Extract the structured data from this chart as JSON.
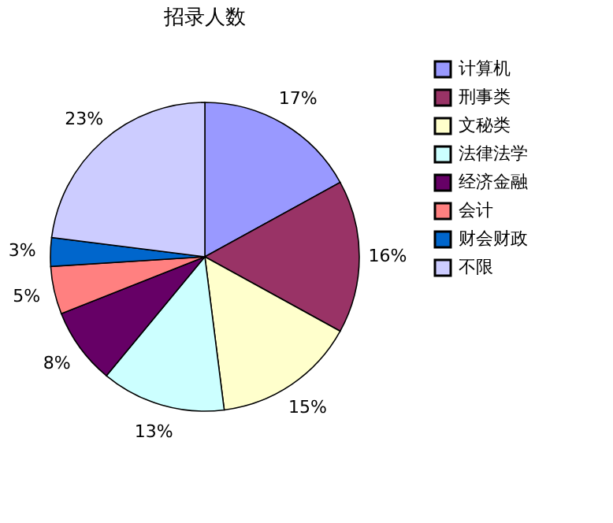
{
  "chart_data": {
    "type": "pie",
    "title": "招录人数",
    "categories": [
      "计算机",
      "刑事类",
      "文秘类",
      "法律法学",
      "经济金融",
      "会计",
      "财会财政",
      "不限"
    ],
    "values": [
      17,
      16,
      15,
      13,
      8,
      5,
      3,
      23
    ],
    "value_labels": [
      "17%",
      "16%",
      "15%",
      "13%",
      "8%",
      "5%",
      "3%",
      "23%"
    ],
    "colors": [
      "#9999ff",
      "#993366",
      "#ffffcc",
      "#ccffff",
      "#660066",
      "#ff8080",
      "#0066cc",
      "#ccccff"
    ],
    "legend": "right"
  }
}
